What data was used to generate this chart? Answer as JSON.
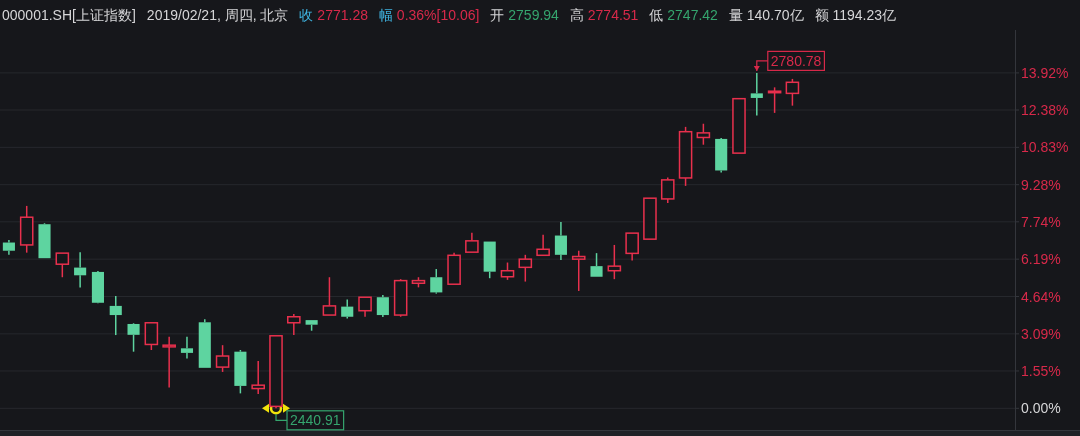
{
  "chart_data": {
    "type": "candlestick",
    "title": "000001.SH[上证指数]",
    "subtitle": "2019/02/21, 周四, 北京",
    "annotations": [
      "收 2771.28",
      "幅 0.36%[10.06]",
      "开 2759.94",
      "高 2774.51",
      "低 2747.42",
      "量 140.70亿",
      "额 1194.23亿",
      "2780.78",
      "2440.91"
    ],
    "categories": [
      null,
      null,
      null,
      null,
      null,
      null,
      null,
      null,
      null,
      null,
      null,
      null,
      null,
      null,
      null,
      null,
      null,
      null,
      null,
      null,
      null,
      null,
      null,
      null,
      null,
      null,
      null,
      null,
      null,
      null,
      null,
      null,
      null,
      null,
      null,
      null,
      null,
      null,
      null,
      null,
      null,
      null,
      null,
      null,
      null,
      null,
      null,
      null,
      null,
      null,
      null,
      null,
      null,
      null,
      null,
      null,
      null
    ],
    "ohlc": [
      [
        6.88,
        6.99,
        6.37,
        6.54
      ],
      [
        6.78,
        8.4,
        6.46,
        7.93
      ],
      [
        7.64,
        7.68,
        6.23,
        6.23
      ],
      [
        5.98,
        6.44,
        5.44,
        6.44
      ],
      [
        5.84,
        6.48,
        5.01,
        5.52
      ],
      [
        5.66,
        5.7,
        4.36,
        4.38
      ],
      [
        4.25,
        4.66,
        3.04,
        3.87
      ],
      [
        3.5,
        3.53,
        2.35,
        3.05
      ],
      [
        2.65,
        3.58,
        2.42,
        3.55
      ],
      [
        2.55,
        2.97,
        0.86,
        2.62
      ],
      [
        2.49,
        2.97,
        2.07,
        2.3
      ],
      [
        3.57,
        3.7,
        1.68,
        1.68
      ],
      [
        1.71,
        2.62,
        1.51,
        2.17
      ],
      [
        2.35,
        2.42,
        0.62,
        0.93
      ],
      [
        0.82,
        1.96,
        0.59,
        0.96
      ],
      [
        0.08,
        3.01,
        0.0,
        3.01
      ],
      [
        3.55,
        3.91,
        3.04,
        3.8
      ],
      [
        3.66,
        3.66,
        3.22,
        3.47
      ],
      [
        3.87,
        5.44,
        3.87,
        4.25
      ],
      [
        4.22,
        4.52,
        3.73,
        3.8
      ],
      [
        4.05,
        4.61,
        3.8,
        4.61
      ],
      [
        4.61,
        4.7,
        3.79,
        3.87
      ],
      [
        3.87,
        5.36,
        3.8,
        5.3
      ],
      [
        5.19,
        5.44,
        5.02,
        5.3
      ],
      [
        5.44,
        5.78,
        4.76,
        4.81
      ],
      [
        5.15,
        6.46,
        5.15,
        6.35
      ],
      [
        6.48,
        7.29,
        6.48,
        6.95
      ],
      [
        6.92,
        6.92,
        5.4,
        5.67
      ],
      [
        5.46,
        6.05,
        5.33,
        5.71
      ],
      [
        5.85,
        6.37,
        5.26,
        6.19
      ],
      [
        6.35,
        7.2,
        6.35,
        6.6
      ],
      [
        7.17,
        7.73,
        6.16,
        6.37
      ],
      [
        6.19,
        6.54,
        4.87,
        6.3
      ],
      [
        5.9,
        6.44,
        5.46,
        5.46
      ],
      [
        5.71,
        6.78,
        5.36,
        5.9
      ],
      [
        6.43,
        7.27,
        6.13,
        7.27
      ],
      [
        7.02,
        8.72,
        7.02,
        8.72
      ],
      [
        8.69,
        9.58,
        8.52,
        9.48
      ],
      [
        9.56,
        11.68,
        9.23,
        11.48
      ],
      [
        11.24,
        11.81,
        10.94,
        11.43
      ],
      [
        11.18,
        11.22,
        9.79,
        9.87
      ],
      [
        10.59,
        12.85,
        10.59,
        12.85
      ],
      [
        13.07,
        13.92,
        12.15,
        12.88
      ],
      [
        13.1,
        13.32,
        12.26,
        13.16
      ],
      [
        13.07,
        13.67,
        12.56,
        13.53
      ],
      null,
      null,
      null,
      null,
      null,
      null,
      null,
      null,
      null,
      null,
      null,
      null
    ],
    "colors": [
      "#5ed4a0",
      "#e8304d",
      "#5ed4a0",
      "#e8304d",
      "#5ed4a0",
      "#5ed4a0",
      "#5ed4a0",
      "#5ed4a0",
      "#e8304d",
      "#e8304d",
      "#5ed4a0",
      "#5ed4a0",
      "#e8304d",
      "#5ed4a0",
      "#e8304d",
      "#e8304d",
      "#e8304d",
      "#5ed4a0",
      "#e8304d",
      "#5ed4a0",
      "#e8304d",
      "#5ed4a0",
      "#e8304d",
      "#e8304d",
      "#5ed4a0",
      "#e8304d",
      "#e8304d",
      "#5ed4a0",
      "#e8304d",
      "#e8304d",
      "#e8304d",
      "#5ed4a0",
      "#e8304d",
      "#5ed4a0",
      "#e8304d",
      "#e8304d",
      "#e8304d",
      "#e8304d",
      "#e8304d",
      "#e8304d",
      "#5ed4a0",
      "#e8304d",
      "#5ed4a0",
      "#e8304d",
      "#e8304d",
      null,
      null,
      null,
      null,
      null,
      null,
      null,
      null,
      null,
      null,
      null,
      null
    ],
    "ylim": [
      -0.9,
      15.7
    ],
    "yticks": [
      {
        "value": 0,
        "label": "0.00%"
      },
      {
        "value": 1.55,
        "label": "1.55%"
      },
      {
        "value": 3.09,
        "label": "3.09%"
      },
      {
        "value": 4.64,
        "label": "4.64%"
      },
      {
        "value": 6.19,
        "label": "6.19%"
      },
      {
        "value": 7.74,
        "label": "7.74%"
      },
      {
        "value": 9.28,
        "label": "9.28%"
      },
      {
        "value": 10.83,
        "label": "10.83%"
      },
      {
        "value": 12.38,
        "label": "12.38%"
      },
      {
        "value": 13.92,
        "label": "13.92%"
      }
    ],
    "grid": "y",
    "tick_labels": "y"
  }
}
